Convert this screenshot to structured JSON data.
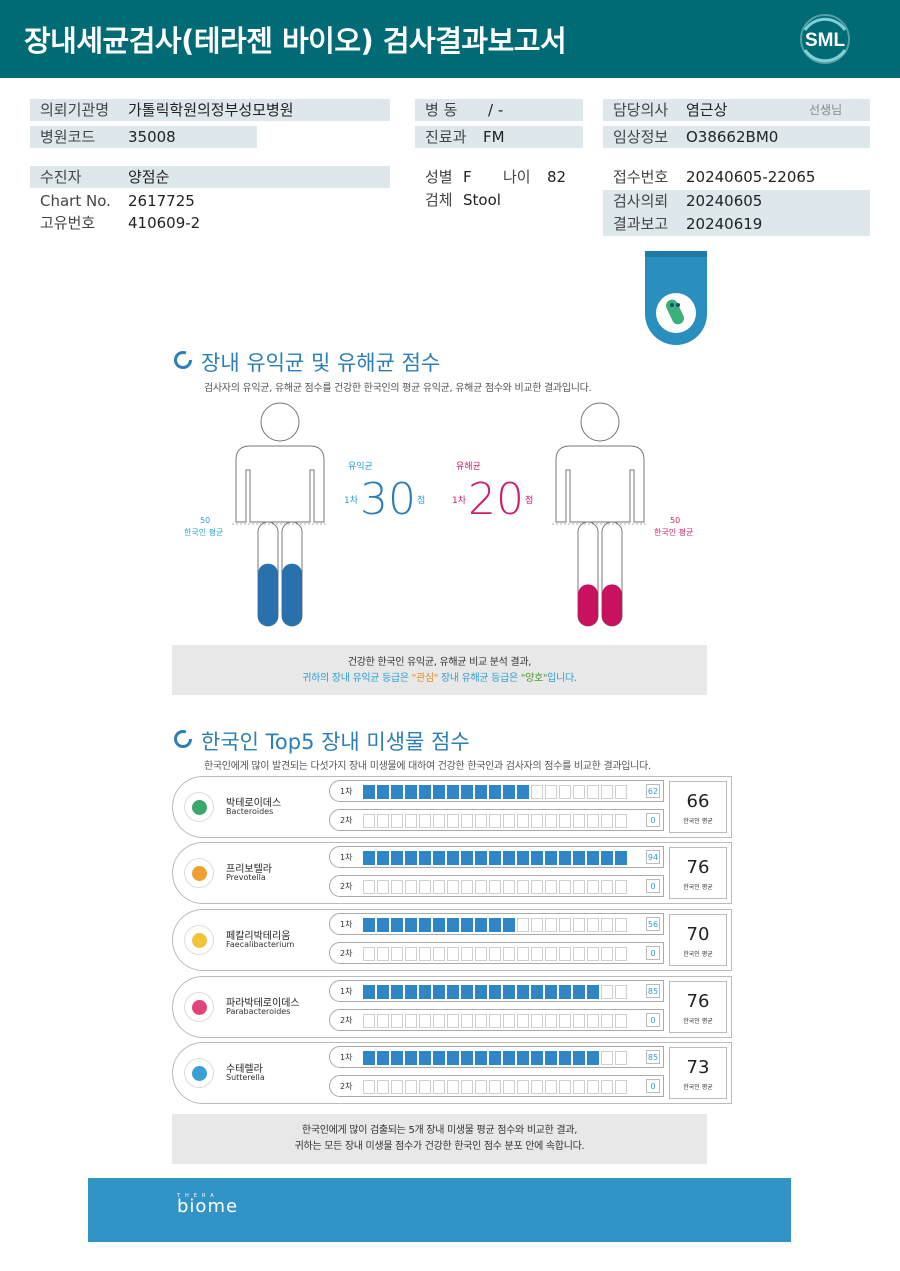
{
  "header": {
    "title": "장내세균검사(테라젠 바이오) 검사결과보고서",
    "logo_text": "SML"
  },
  "info": {
    "institution_label": "의뢰기관명",
    "institution_value": "가톨릭학원의정부성모병원",
    "hospital_code_label": "병원코드",
    "hospital_code_value": "35008",
    "ward_label": "병 동",
    "ward_value": "/ -",
    "dept_label": "진료과",
    "dept_value": "FM",
    "doctor_label": "담당의사",
    "doctor_value": "염근상",
    "doctor_suffix": "선생님",
    "clinical_label": "임상정보",
    "clinical_value": "O38662BM0",
    "patient_label": "수진자",
    "patient_value": "양점순",
    "chart_label": "Chart No.",
    "chart_value": "2617725",
    "unique_label": "고유번호",
    "unique_value": "410609-2",
    "sex_label": "성별",
    "sex_value": "F",
    "age_label": "나이",
    "age_value": "82",
    "specimen_label": "검체",
    "specimen_value": "Stool",
    "receipt_label": "접수번호",
    "receipt_value": "20240605-22065",
    "request_label": "검사의뢰",
    "request_value": "20240605",
    "report_label": "결과보고",
    "report_value": "20240619"
  },
  "section1": {
    "title": "장내 유익균 및 유해균 점수",
    "subtitle": "검사자의 유익균, 유해균 점수를 건강한 한국인의 평균 유익균, 유해균 점수와 비교한 결과입니다.",
    "beneficial_label": "유익균",
    "harmful_label": "유해균",
    "round": "1차",
    "beneficial_score": "30",
    "harmful_score": "20",
    "unit": "점",
    "avg_value": "50",
    "avg_label": "한국인 평균",
    "beneficial_fill": 0.3,
    "harmful_fill": 0.2,
    "summary_line1": "건강한 한국인 유익균, 유해균 비교 분석 결과,",
    "summary_line2_a": "귀하의 장내 유익균 등급은 ",
    "summary_line2_b": "\"관심\"",
    "summary_line2_c": " 장내 유해균 등급은 ",
    "summary_line2_d": "\"양호\"",
    "summary_line2_e": "입니다."
  },
  "section2": {
    "title": "한국인 Top5 장내 미생물 점수",
    "subtitle": "한국인에게 많이 발견되는 다섯가지 장내 미생물에 대하여 건강한 한국인과 검사자의 점수를 비교한 결과입니다.",
    "round1": "1차",
    "round2": "2차",
    "avg_label": "한국인 평균",
    "items": [
      {
        "kor": "박테로이데스",
        "eng": "Bacteroides",
        "score1": "62",
        "score2": "0",
        "avg": "66",
        "color": "#3aa86a"
      },
      {
        "kor": "프리보텔라",
        "eng": "Prevotella",
        "score1": "94",
        "score2": "0",
        "avg": "76",
        "color": "#f0a030"
      },
      {
        "kor": "페칼리박테리움",
        "eng": "Faecalibacterium",
        "score1": "56",
        "score2": "0",
        "avg": "70",
        "color": "#f2c23a"
      },
      {
        "kor": "파라박테로이데스",
        "eng": "Parabacteroides",
        "score1": "85",
        "score2": "0",
        "avg": "76",
        "color": "#e0447a"
      },
      {
        "kor": "수테렐라",
        "eng": "Sutterella",
        "score1": "85",
        "score2": "0",
        "avg": "73",
        "color": "#3a9fd6"
      }
    ],
    "summary_line1": "한국인에게 많이 검출되는 5개 장내 미생물 평균 점수와 비교한 결과,",
    "summary_line2": "귀하는 모든 장내 미생물 점수가 건강한 한국인 점수 분포 안에 속합니다."
  },
  "footer": {
    "brand_top": "THERA",
    "brand": "biome"
  }
}
